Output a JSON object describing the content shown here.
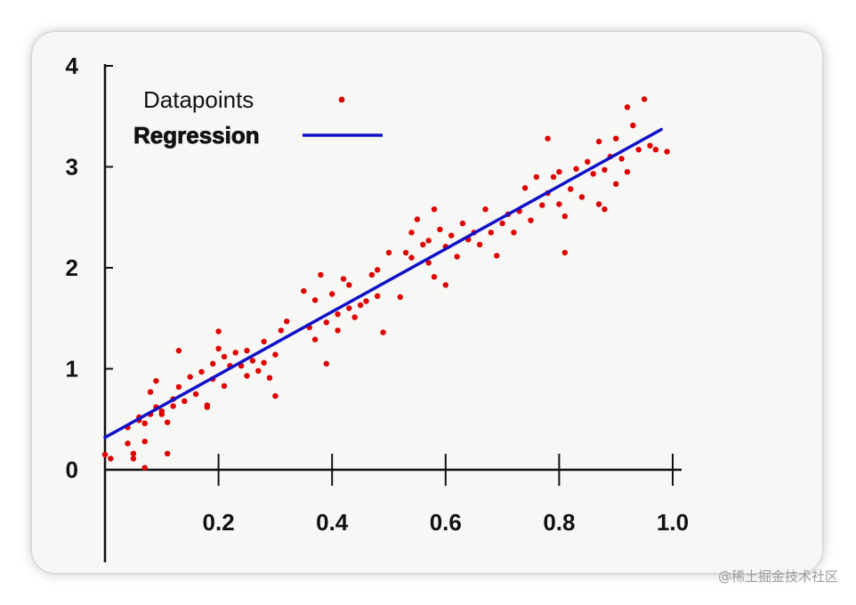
{
  "chart_data": {
    "type": "scatter",
    "title": "",
    "xlabel": "",
    "ylabel": "",
    "xlim": [
      0,
      1.0
    ],
    "ylim": [
      -0.9,
      4
    ],
    "x_ticks": [
      0.2,
      0.4,
      0.6,
      0.8,
      1.0
    ],
    "x_tick_labels": [
      "0.2",
      "0.4",
      "0.6",
      "0.8",
      "1.0"
    ],
    "y_ticks": [
      0,
      1,
      2,
      3,
      4
    ],
    "y_tick_labels": [
      "0",
      "1",
      "2",
      "3",
      "4"
    ],
    "grid": false,
    "legend_position": "top-left",
    "legend": {
      "datapoints_label": "Datapoints",
      "regression_label": "Regression"
    },
    "colors": {
      "datapoints": "#e00000",
      "regression": "#1010c8"
    },
    "series": [
      {
        "name": "Datapoints",
        "kind": "scatter",
        "points": [
          [
            0.0,
            0.15
          ],
          [
            0.01,
            0.11
          ],
          [
            0.04,
            0.42
          ],
          [
            0.04,
            0.26
          ],
          [
            0.05,
            0.16
          ],
          [
            0.05,
            0.11
          ],
          [
            0.06,
            0.52
          ],
          [
            0.06,
            0.49
          ],
          [
            0.07,
            0.46
          ],
          [
            0.07,
            0.28
          ],
          [
            0.07,
            0.02
          ],
          [
            0.08,
            0.55
          ],
          [
            0.08,
            0.77
          ],
          [
            0.09,
            0.62
          ],
          [
            0.09,
            0.88
          ],
          [
            0.1,
            0.58
          ],
          [
            0.1,
            0.55
          ],
          [
            0.11,
            0.47
          ],
          [
            0.11,
            0.16
          ],
          [
            0.12,
            0.63
          ],
          [
            0.12,
            0.7
          ],
          [
            0.13,
            0.82
          ],
          [
            0.13,
            1.18
          ],
          [
            0.14,
            0.68
          ],
          [
            0.15,
            0.92
          ],
          [
            0.16,
            0.75
          ],
          [
            0.17,
            0.97
          ],
          [
            0.18,
            0.62
          ],
          [
            0.18,
            0.64
          ],
          [
            0.19,
            0.9
          ],
          [
            0.19,
            1.05
          ],
          [
            0.2,
            1.2
          ],
          [
            0.2,
            1.37
          ],
          [
            0.21,
            0.83
          ],
          [
            0.21,
            1.12
          ],
          [
            0.22,
            1.03
          ],
          [
            0.23,
            1.16
          ],
          [
            0.24,
            1.03
          ],
          [
            0.25,
            0.93
          ],
          [
            0.25,
            1.18
          ],
          [
            0.26,
            1.08
          ],
          [
            0.27,
            0.98
          ],
          [
            0.28,
            1.27
          ],
          [
            0.28,
            1.06
          ],
          [
            0.29,
            0.91
          ],
          [
            0.3,
            1.14
          ],
          [
            0.3,
            0.73
          ],
          [
            0.31,
            1.38
          ],
          [
            0.32,
            1.47
          ],
          [
            0.35,
            1.77
          ],
          [
            0.36,
            1.41
          ],
          [
            0.37,
            1.29
          ],
          [
            0.37,
            1.68
          ],
          [
            0.38,
            1.93
          ],
          [
            0.39,
            1.05
          ],
          [
            0.39,
            1.46
          ],
          [
            0.4,
            1.74
          ],
          [
            0.41,
            1.54
          ],
          [
            0.41,
            1.38
          ],
          [
            0.42,
            1.89
          ],
          [
            0.43,
            1.83
          ],
          [
            0.43,
            1.6
          ],
          [
            0.44,
            1.51
          ],
          [
            0.45,
            1.63
          ],
          [
            0.46,
            1.67
          ],
          [
            0.47,
            1.93
          ],
          [
            0.48,
            1.72
          ],
          [
            0.48,
            1.98
          ],
          [
            0.49,
            1.36
          ],
          [
            0.5,
            2.15
          ],
          [
            0.52,
            1.71
          ],
          [
            0.53,
            2.15
          ],
          [
            0.54,
            2.1
          ],
          [
            0.54,
            2.35
          ],
          [
            0.55,
            2.48
          ],
          [
            0.56,
            2.23
          ],
          [
            0.57,
            2.27
          ],
          [
            0.57,
            2.05
          ],
          [
            0.58,
            2.58
          ],
          [
            0.58,
            1.91
          ],
          [
            0.59,
            2.38
          ],
          [
            0.6,
            1.83
          ],
          [
            0.6,
            2.21
          ],
          [
            0.61,
            2.32
          ],
          [
            0.62,
            2.11
          ],
          [
            0.63,
            2.44
          ],
          [
            0.64,
            2.28
          ],
          [
            0.65,
            2.35
          ],
          [
            0.66,
            2.23
          ],
          [
            0.67,
            2.58
          ],
          [
            0.68,
            2.35
          ],
          [
            0.69,
            2.12
          ],
          [
            0.7,
            2.44
          ],
          [
            0.71,
            2.53
          ],
          [
            0.72,
            2.35
          ],
          [
            0.73,
            2.56
          ],
          [
            0.74,
            2.79
          ],
          [
            0.75,
            2.47
          ],
          [
            0.76,
            2.9
          ],
          [
            0.77,
            2.62
          ],
          [
            0.78,
            2.74
          ],
          [
            0.78,
            3.28
          ],
          [
            0.79,
            2.9
          ],
          [
            0.8,
            2.63
          ],
          [
            0.8,
            2.95
          ],
          [
            0.81,
            2.51
          ],
          [
            0.81,
            2.15
          ],
          [
            0.82,
            2.78
          ],
          [
            0.83,
            2.98
          ],
          [
            0.84,
            2.7
          ],
          [
            0.85,
            3.05
          ],
          [
            0.86,
            2.93
          ],
          [
            0.87,
            2.63
          ],
          [
            0.87,
            3.25
          ],
          [
            0.88,
            2.97
          ],
          [
            0.88,
            2.58
          ],
          [
            0.89,
            3.1
          ],
          [
            0.9,
            2.83
          ],
          [
            0.9,
            3.28
          ],
          [
            0.91,
            3.08
          ],
          [
            0.92,
            2.95
          ],
          [
            0.92,
            3.59
          ],
          [
            0.93,
            3.41
          ],
          [
            0.94,
            3.17
          ],
          [
            0.95,
            3.67
          ],
          [
            0.96,
            3.21
          ],
          [
            0.97,
            3.17
          ],
          [
            0.99,
            3.15
          ]
        ]
      },
      {
        "name": "Regression",
        "kind": "line",
        "points": [
          [
            0.0,
            0.32
          ],
          [
            0.98,
            3.37
          ]
        ]
      }
    ]
  },
  "watermark": "@稀土掘金技术社区"
}
